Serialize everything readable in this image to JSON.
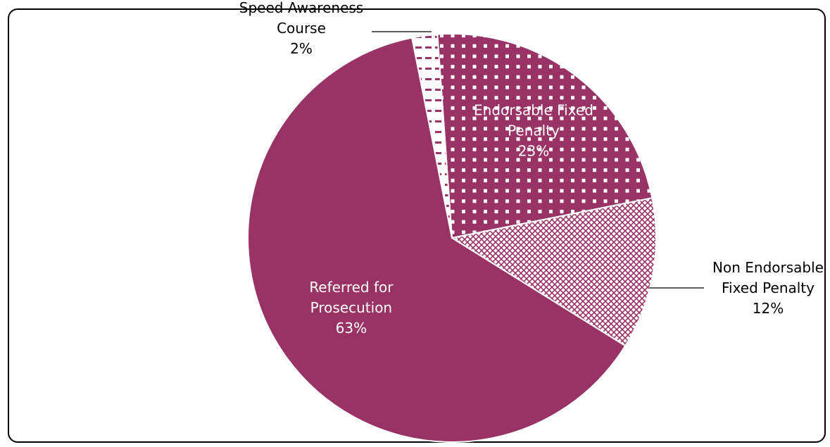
{
  "chart_data": {
    "type": "pie",
    "title": "",
    "start_angle_deg": -4.1,
    "direction": "clockwise",
    "slices": [
      {
        "name": "Endorsable Fixed Penalty",
        "label_lines": [
          "Endorsable Fixed",
          "Penalty"
        ],
        "value": 23,
        "value_label": "23%",
        "color": "#993366",
        "pattern": "dots",
        "label_position": "inside",
        "label_color": "#ffffff"
      },
      {
        "name": "Non Endorsable Fixed Penalty",
        "label_lines": [
          "Non Endorsable",
          "Fixed Penalty"
        ],
        "value": 12,
        "value_label": "12%",
        "color": "#993366",
        "pattern": "crosshatch",
        "label_position": "outside-right",
        "label_color": "#000000"
      },
      {
        "name": "Referred for Prosecution",
        "label_lines": [
          "Referred for",
          "Prosecution"
        ],
        "value": 63,
        "value_label": "63%",
        "color": "#993366",
        "pattern": "solid",
        "label_position": "inside",
        "label_color": "#ffffff"
      },
      {
        "name": "Speed Awareness Course",
        "label_lines": [
          "Speed Awareness",
          "Course"
        ],
        "value": 2,
        "value_label": "2%",
        "color": "#993366",
        "pattern": "dashes",
        "label_position": "outside-top-left",
        "label_color": "#000000"
      }
    ]
  }
}
